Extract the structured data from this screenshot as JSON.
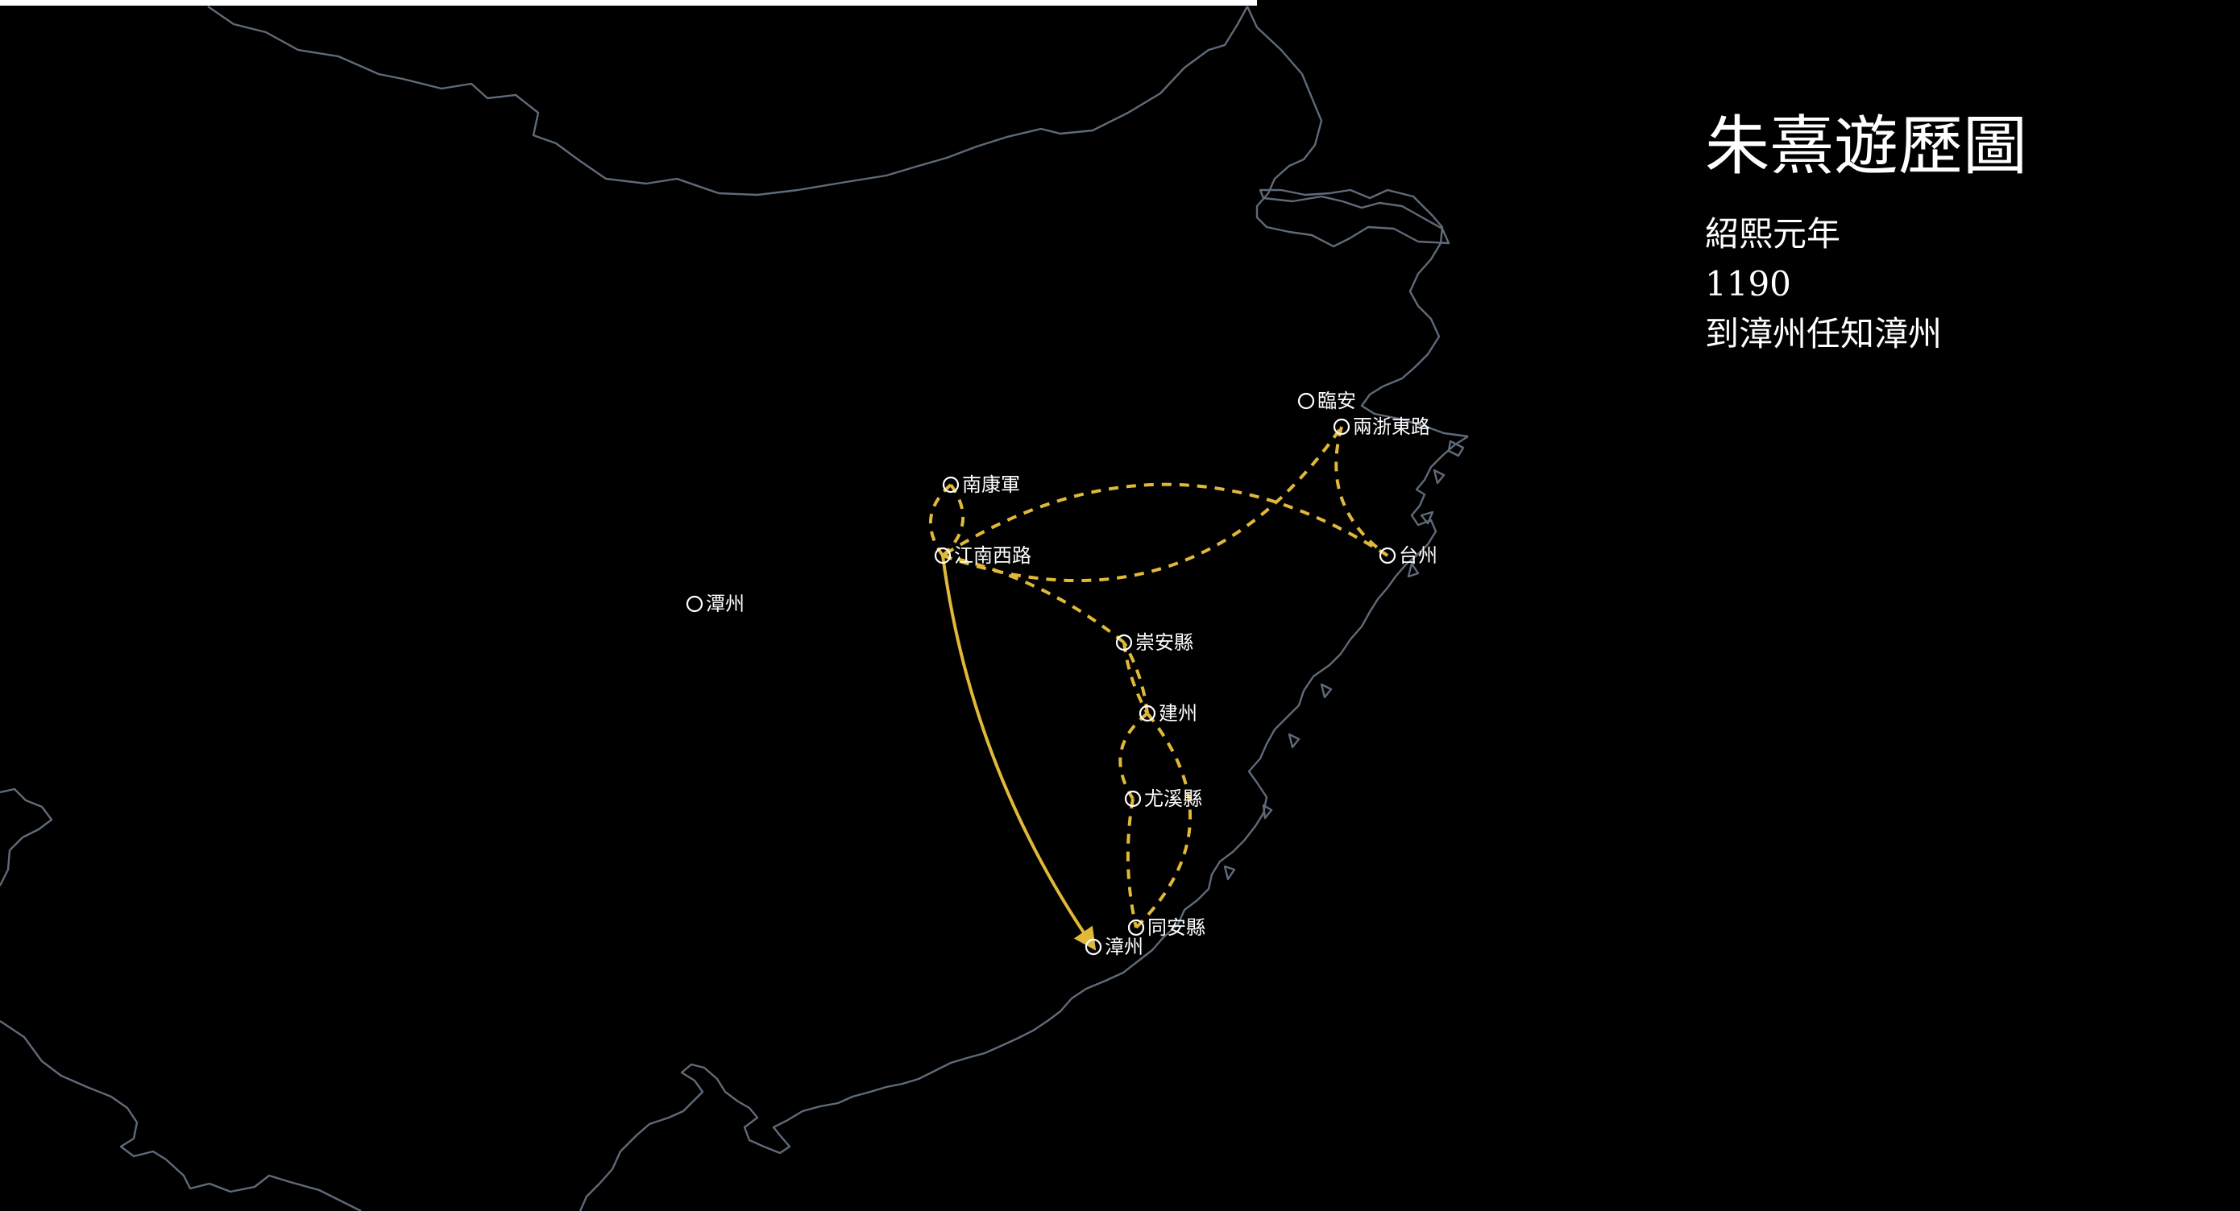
{
  "map": {
    "title": "朱熹遊歷圖",
    "era": "紹熙元年",
    "year": "1190",
    "event": "到漳州任知漳州",
    "colors": {
      "background": "#000000",
      "coastline": "#5f6b7a",
      "route": "#e1b93a",
      "marker": "#ffffff",
      "text": "#ffffff"
    },
    "places": [
      {
        "id": "linan",
        "name": "臨安"
      },
      {
        "id": "liangzhe",
        "name": "兩浙東路"
      },
      {
        "id": "nankang",
        "name": "南康軍"
      },
      {
        "id": "jiangxi",
        "name": "江南西路"
      },
      {
        "id": "taizhou",
        "name": "台州"
      },
      {
        "id": "tanzhou",
        "name": "潭州"
      },
      {
        "id": "chongan",
        "name": "崇安縣"
      },
      {
        "id": "jianzhou",
        "name": "建州"
      },
      {
        "id": "youxi",
        "name": "尤溪縣"
      },
      {
        "id": "tongan",
        "name": "同安縣"
      },
      {
        "id": "zhangzhou",
        "name": "漳州"
      }
    ],
    "routes": [
      {
        "from": "chongan",
        "to": "jianzhou",
        "style": "dashed"
      },
      {
        "from": "jianzhou",
        "to": "youxi",
        "style": "dashed"
      },
      {
        "from": "youxi",
        "to": "tongan",
        "style": "dashed"
      },
      {
        "from": "tongan",
        "to": "jianzhou",
        "style": "dashed"
      },
      {
        "from": "jianzhou",
        "to": "chongan",
        "style": "dashed"
      },
      {
        "from": "chongan",
        "to": "jiangxi",
        "style": "dashed"
      },
      {
        "from": "jiangxi",
        "to": "nankang",
        "style": "dashed"
      },
      {
        "from": "nankang",
        "to": "jiangxi",
        "style": "dashed"
      },
      {
        "from": "jiangxi",
        "to": "liangzhe",
        "style": "dashed"
      },
      {
        "from": "liangzhe",
        "to": "taizhou",
        "style": "dashed"
      },
      {
        "from": "taizhou",
        "to": "jiangxi",
        "style": "dashed"
      },
      {
        "from": "jiangxi",
        "to": "zhangzhou",
        "style": "solid",
        "current": true
      }
    ]
  }
}
